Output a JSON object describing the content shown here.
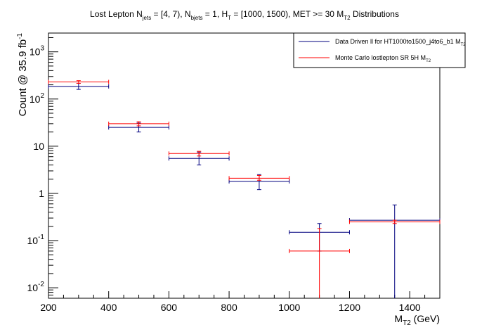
{
  "chart_data": {
    "type": "scatter",
    "title": {
      "p1": "Lost Lepton N",
      "s1": "jets",
      "p2": " = [4, 7), N",
      "s2": "bjets",
      "p3": " = 1, H",
      "s3": "T",
      "p4": " = [1000, 1500), MET >= 30 M",
      "s4": "T2",
      "p5": "  Distributions"
    },
    "xlabel": {
      "main": "M",
      "sub": "T2",
      "rest": " (GeV)"
    },
    "ylabel": {
      "main": "Count @ 35.9 fb",
      "sup": "-1"
    },
    "xlim": [
      200,
      1500
    ],
    "ylim": [
      0.006,
      2500
    ],
    "yscale": "log",
    "x_ticks": [
      "200",
      "400",
      "600",
      "800",
      "1000",
      "1200",
      "1400"
    ],
    "y_ticks": [
      {
        "value": 0.01,
        "base": "10",
        "exp": "-2"
      },
      {
        "value": 0.1,
        "base": "10",
        "exp": "-1"
      },
      {
        "value": 1,
        "base": "1",
        "exp": ""
      },
      {
        "value": 10,
        "base": "10",
        "exp": ""
      },
      {
        "value": 100,
        "base": "10",
        "exp": "2"
      },
      {
        "value": 1000,
        "base": "10",
        "exp": "3"
      }
    ],
    "legend_position": "top-right",
    "series": [
      {
        "name": "Data Driven ll for HT1000to1500_j4to6_b1 M",
        "name_sub": "T2",
        "color": "#00007f",
        "points": [
          {
            "xlo": 200,
            "xhi": 400,
            "x": 300,
            "y": 185,
            "ylo": 160,
            "yhi": 215
          },
          {
            "xlo": 400,
            "xhi": 600,
            "x": 500,
            "y": 25,
            "ylo": 20,
            "yhi": 31
          },
          {
            "xlo": 600,
            "xhi": 800,
            "x": 700,
            "y": 5.5,
            "ylo": 4.0,
            "yhi": 7.5
          },
          {
            "xlo": 800,
            "xhi": 1000,
            "x": 900,
            "y": 1.8,
            "ylo": 1.2,
            "yhi": 2.5
          },
          {
            "xlo": 1000,
            "xhi": 1200,
            "x": 1100,
            "y": 0.15,
            "ylo": 0.06,
            "yhi": 0.23
          },
          {
            "xlo": 1200,
            "xhi": 1500,
            "x": 1350,
            "y": 0.27,
            "ylo": 0.001,
            "yhi": 0.57
          }
        ]
      },
      {
        "name": "Monte Carlo lostlepton SR 5H M",
        "name_sub": "T2",
        "color": "#ff0000",
        "points": [
          {
            "xlo": 200,
            "xhi": 400,
            "x": 300,
            "y": 230,
            "ylo": 215,
            "yhi": 245
          },
          {
            "xlo": 400,
            "xhi": 600,
            "x": 500,
            "y": 30,
            "ylo": 27,
            "yhi": 33
          },
          {
            "xlo": 600,
            "xhi": 800,
            "x": 700,
            "y": 7.0,
            "ylo": 6.2,
            "yhi": 7.8
          },
          {
            "xlo": 800,
            "xhi": 1000,
            "x": 900,
            "y": 2.1,
            "ylo": 1.9,
            "yhi": 2.4
          },
          {
            "xlo": 1000,
            "xhi": 1200,
            "x": 1100,
            "y": 0.06,
            "ylo": 0.001,
            "yhi": 0.18
          },
          {
            "xlo": 1200,
            "xhi": 1500,
            "x": 1350,
            "y": 0.25,
            "ylo": 0.23,
            "yhi": 0.27
          }
        ]
      }
    ]
  }
}
